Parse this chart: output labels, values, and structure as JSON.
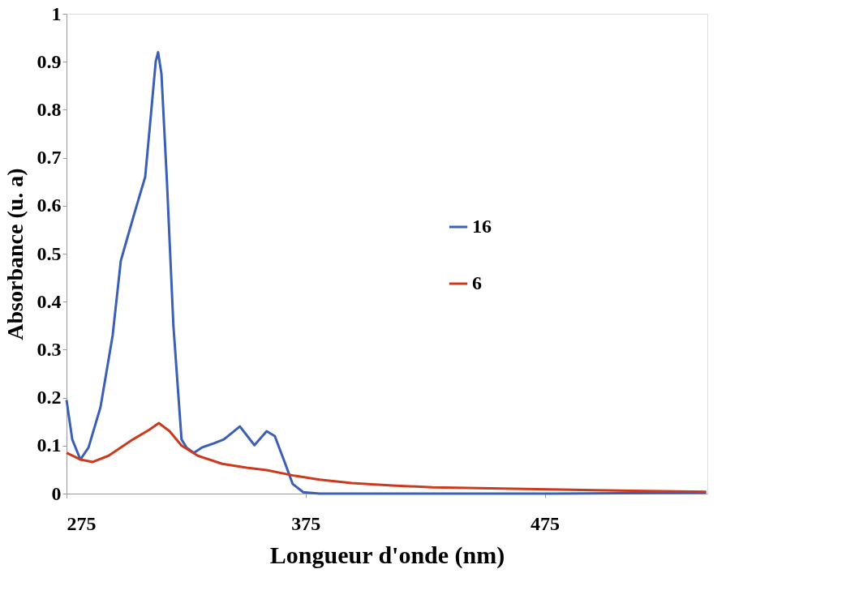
{
  "chart_data": {
    "type": "line",
    "xlabel": "Longueur d'onde (nm)",
    "ylabel": "Absorbance (u. a)",
    "xlim": [
      275,
      543
    ],
    "xticks": [
      275,
      375,
      475
    ],
    "ylim": [
      0,
      1
    ],
    "yticks": [
      0,
      0.1,
      0.2,
      0.3,
      0.4,
      0.5,
      0.6,
      0.7,
      0.8,
      0.9,
      1
    ],
    "grid": false,
    "legend": "right",
    "marker": "none",
    "line_style": "solid",
    "series": [
      {
        "name": "16",
        "color": "#3a5fb5",
        "x": [
          275,
          277.4,
          280.8,
          284.2,
          289.2,
          294.3,
          297.7,
          300.1,
          303.5,
          307.9,
          310.3,
          312.3,
          313.3,
          314.7,
          317,
          319.7,
          323.1,
          325.2,
          328.2,
          331.6,
          336.7,
          340.8,
          347.5,
          353.6,
          358.7,
          362.1,
          366.5,
          369.6,
          374,
          380.8,
          420,
          480,
          542.5
        ],
        "values": [
          0.195,
          0.113,
          0.071,
          0.096,
          0.18,
          0.33,
          0.485,
          0.527,
          0.586,
          0.66,
          0.79,
          0.9,
          0.92,
          0.875,
          0.65,
          0.35,
          0.113,
          0.096,
          0.085,
          0.096,
          0.105,
          0.113,
          0.14,
          0.101,
          0.13,
          0.12,
          0.062,
          0.02,
          0.003,
          0,
          0,
          0,
          0.002
        ]
      },
      {
        "name": "6",
        "color": "#cc3a1e",
        "x": [
          275,
          280.8,
          286,
          292.6,
          302.8,
          309.6,
          313.6,
          318.1,
          323.1,
          329.9,
          340.1,
          350.3,
          358.7,
          370.6,
          380.8,
          394.3,
          411.3,
          428.2,
          462.1,
          496,
          542.5
        ],
        "values": [
          0.085,
          0.071,
          0.066,
          0.079,
          0.113,
          0.133,
          0.147,
          0.13,
          0.1,
          0.079,
          0.062,
          0.054,
          0.049,
          0.037,
          0.029,
          0.022,
          0.017,
          0.013,
          0.01,
          0.007,
          0.004
        ]
      }
    ]
  }
}
